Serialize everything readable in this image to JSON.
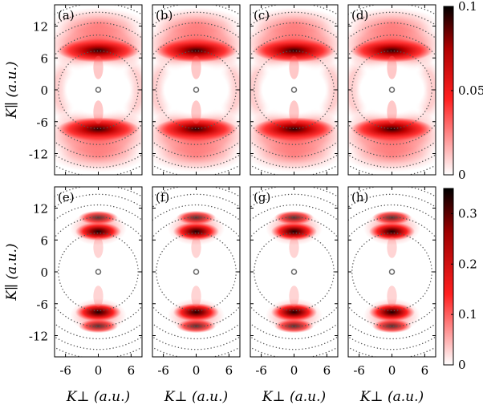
{
  "chart_data": [
    {
      "type": "heatmap",
      "title": "",
      "row": "top",
      "xlabel": "",
      "ylabel": "K∥ (a.u.)",
      "xlim": [
        -8,
        8
      ],
      "ylim": [
        -16,
        16
      ],
      "yticks": [
        "12",
        "6",
        "0",
        "-6",
        "-12"
      ],
      "colorbar": {
        "range": [
          0,
          0.1
        ],
        "ticks": [
          "0.1",
          "0.05",
          "0"
        ],
        "colormap": [
          "#ffffff",
          "#ff0000",
          "#000000"
        ]
      },
      "panels": [
        {
          "label": "(a)",
          "lobe_center_y": 7.3,
          "lobe_peak": 0.09
        },
        {
          "label": "(b)",
          "lobe_center_y": 7.3,
          "lobe_peak": 0.095
        },
        {
          "label": "(c)",
          "lobe_center_y": 7.3,
          "lobe_peak": 0.1
        },
        {
          "label": "(d)",
          "lobe_center_y": 7.3,
          "lobe_peak": 0.1
        }
      ],
      "dotted_circle_radii": [
        7.3,
        10.3,
        12.6,
        14.6,
        16.3
      ]
    },
    {
      "type": "heatmap",
      "title": "",
      "row": "bottom",
      "xlabel": "K⊥ (a.u.)",
      "ylabel": "K∥ (a.u.)",
      "xlim": [
        -8,
        8
      ],
      "ylim": [
        -16,
        16
      ],
      "xticks": [
        "-6",
        "0",
        "6"
      ],
      "yticks": [
        "12",
        "6",
        "0",
        "-6",
        "-12"
      ],
      "colorbar": {
        "range": [
          0,
          0.35
        ],
        "ticks": [
          "0.3",
          "0.2",
          "0.1",
          "0"
        ],
        "colormap": [
          "#ffffff",
          "#ff0000",
          "#000000"
        ]
      },
      "panels": [
        {
          "label": "(e)",
          "lobe_peak": 0.33
        },
        {
          "label": "(f)",
          "lobe_peak": 0.33
        },
        {
          "label": "(g)",
          "lobe_peak": 0.34
        },
        {
          "label": "(h)",
          "lobe_peak": 0.35
        }
      ],
      "dotted_circle_radii": [
        7.3,
        10.3,
        12.6,
        14.6,
        16.3
      ]
    }
  ],
  "labels": {
    "ylabel_top": "K∥ (a.u.)",
    "ylabel_bottom": "K∥ (a.u.)",
    "xlabel": "K⊥ (a.u.)",
    "top_cb_ticks": [
      "0.1",
      "0.05",
      "0"
    ],
    "bottom_cb_ticks": [
      "0.3",
      "0.2",
      "0.1",
      "0"
    ],
    "yticks": [
      "12",
      "6",
      "0",
      "-6",
      "-12"
    ],
    "xticks": [
      "-6",
      "0",
      "6"
    ],
    "panel_labels": [
      "(a)",
      "(b)",
      "(c)",
      "(d)",
      "(e)",
      "(f)",
      "(g)",
      "(h)"
    ]
  }
}
